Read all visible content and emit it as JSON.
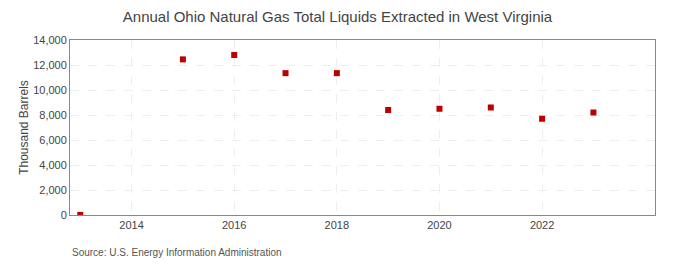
{
  "chart_data": {
    "type": "scatter",
    "title": "Annual Ohio Natural Gas Total Liquids Extracted in West Virginia",
    "ylabel": "Thousand Barrels",
    "annotation": "Source: U.S. Energy Information Administration",
    "x": [
      2013,
      2015,
      2016,
      2017,
      2018,
      2019,
      2020,
      2021,
      2022,
      2023
    ],
    "values": [
      10,
      12450,
      12800,
      11350,
      11350,
      8400,
      8500,
      8600,
      7700,
      8200
    ],
    "color": "#bb0000",
    "marker": "square",
    "xlim": [
      2012.8,
      2024.2
    ],
    "xticks": [
      2014,
      2016,
      2018,
      2020,
      2022
    ],
    "ylim": [
      0,
      14000
    ],
    "yticks": [
      0,
      {
        "value": 2000,
        "label": "2,000"
      },
      {
        "value": 4000,
        "label": "4,000"
      },
      {
        "value": 6000,
        "label": "6,000"
      },
      {
        "value": 8000,
        "label": "8,000"
      },
      {
        "value": 10000,
        "label": "10,000"
      },
      {
        "value": 12000,
        "label": "12,000"
      },
      {
        "value": 14000,
        "label": "14,000"
      }
    ],
    "grid": true
  }
}
